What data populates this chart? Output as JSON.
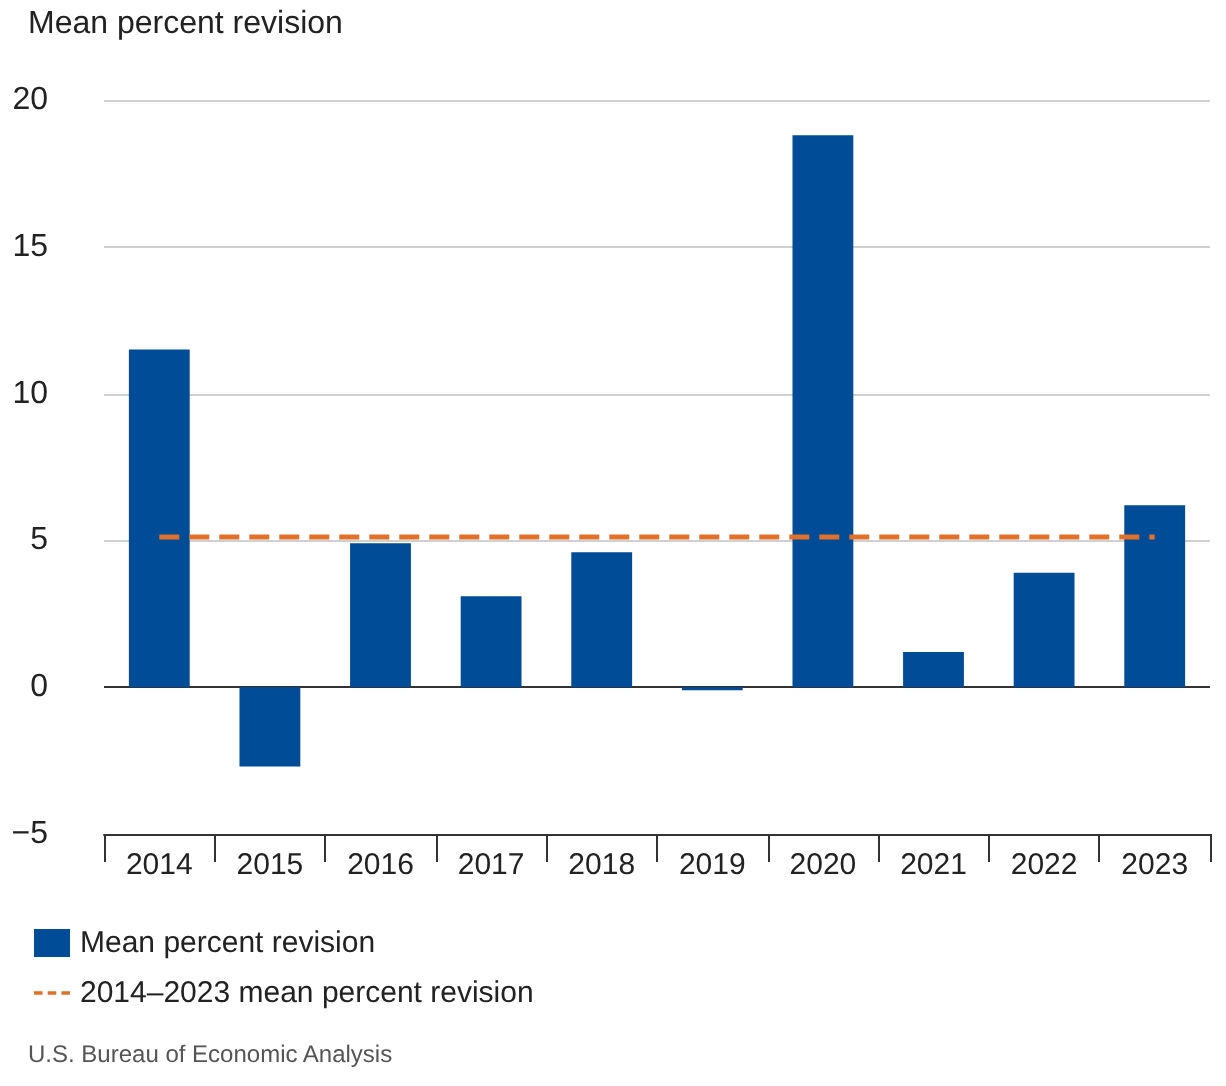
{
  "chart_data": {
    "type": "bar",
    "ylabel": "Mean percent revision",
    "categories": [
      "2014",
      "2015",
      "2016",
      "2017",
      "2018",
      "2019",
      "2020",
      "2021",
      "2022",
      "2023"
    ],
    "series": [
      {
        "name": "Mean percent revision",
        "color": "#004c97",
        "values": [
          11.5,
          -2.7,
          4.9,
          3.1,
          4.6,
          -0.1,
          18.8,
          1.2,
          3.9,
          6.2
        ]
      }
    ],
    "ref_lines": [
      {
        "axis": "y",
        "value": 5.1,
        "label": "2014–2023 mean percent revision",
        "color": "#e0702a",
        "line_style": "dashed"
      }
    ],
    "ylim": [
      -5,
      20
    ],
    "yticks": [
      {
        "value": -5,
        "label": "−5"
      },
      0,
      5,
      10,
      15,
      20
    ],
    "grid": "y",
    "legend": "bottom left",
    "annotations": [
      "U.S. Bureau of Economic Analysis"
    ]
  }
}
